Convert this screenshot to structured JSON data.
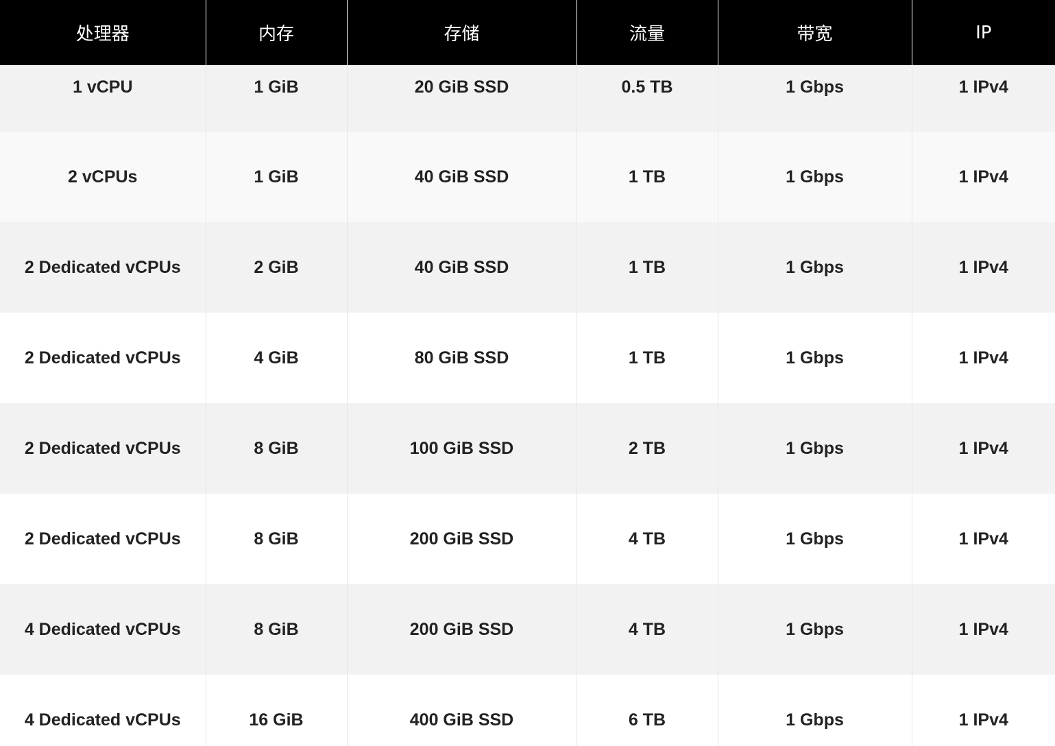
{
  "table": {
    "headers": [
      "处理器",
      "内存",
      "存储",
      "流量",
      "带宽",
      "IP"
    ],
    "rows": [
      [
        "1 vCPU",
        "1 GiB",
        "20 GiB SSD",
        "0.5 TB",
        "1 Gbps",
        "1 IPv4"
      ],
      [
        "2 vCPUs",
        "1 GiB",
        "40 GiB SSD",
        "1 TB",
        "1 Gbps",
        "1 IPv4"
      ],
      [
        "2 Dedicated vCPUs",
        "2 GiB",
        "40 GiB SSD",
        "1 TB",
        "1 Gbps",
        "1 IPv4"
      ],
      [
        "2 Dedicated vCPUs",
        "4 GiB",
        "80 GiB SSD",
        "1 TB",
        "1 Gbps",
        "1 IPv4"
      ],
      [
        "2 Dedicated vCPUs",
        "8 GiB",
        "100 GiB SSD",
        "2 TB",
        "1 Gbps",
        "1 IPv4"
      ],
      [
        "2 Dedicated vCPUs",
        "8 GiB",
        "200 GiB SSD",
        "4 TB",
        "1 Gbps",
        "1 IPv4"
      ],
      [
        "4 Dedicated vCPUs",
        "8 GiB",
        "200 GiB SSD",
        "4 TB",
        "1 Gbps",
        "1 IPv4"
      ],
      [
        "4 Dedicated vCPUs",
        "16 GiB",
        "400 GiB SSD",
        "6 TB",
        "1 Gbps",
        "1 IPv4"
      ]
    ]
  },
  "colors": {
    "header_background": "#000000",
    "header_text": "#ffffff",
    "row_stripe": "#f2f2f2",
    "row_plain": "#ffffff",
    "cell_text": "#222222"
  }
}
